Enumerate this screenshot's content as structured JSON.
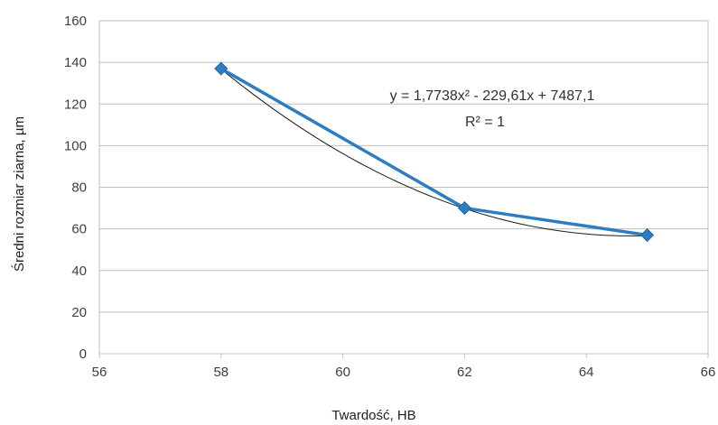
{
  "chart_data": {
    "type": "scatter",
    "title": "",
    "xlabel": "Twardość, HB",
    "ylabel": "Średni rozmiar ziarna, µm",
    "xlim": [
      56,
      66
    ],
    "ylim": [
      0,
      160
    ],
    "x_ticks": [
      56,
      58,
      60,
      62,
      64,
      66
    ],
    "y_ticks": [
      0,
      20,
      40,
      60,
      80,
      100,
      120,
      140,
      160
    ],
    "grid": {
      "horizontal": true,
      "vertical": false
    },
    "series": [
      {
        "type": "line",
        "marker": "diamond",
        "color": "#2E7DC1",
        "points": [
          {
            "x": 58,
            "y": 137
          },
          {
            "x": 62,
            "y": 70
          },
          {
            "x": 65,
            "y": 57
          }
        ]
      }
    ],
    "trendline": {
      "type": "polynomial",
      "order": 2,
      "coefficients": {
        "a": 1.7738,
        "b": -229.61,
        "c": 7487.1
      },
      "color": "#1a1a1a",
      "equation_label": "y = 1,7738x² - 229,61x + 7487,1",
      "r2_label": "R² = 1"
    }
  }
}
